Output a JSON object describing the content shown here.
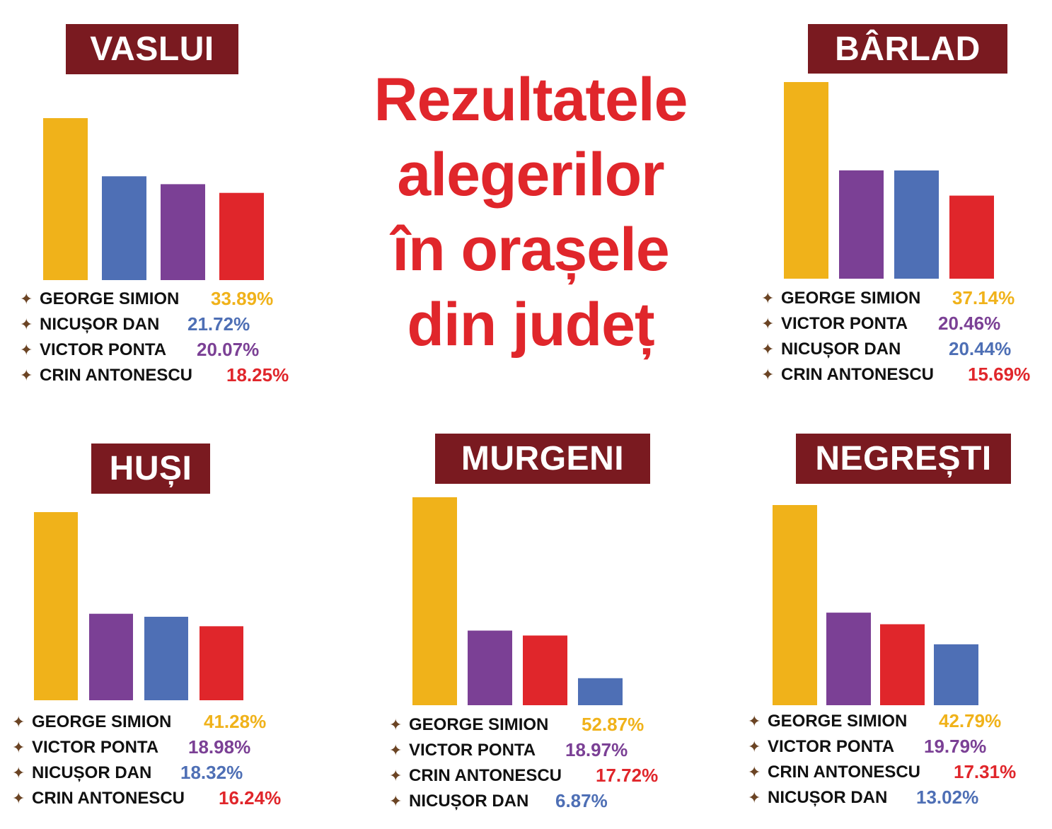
{
  "title_lines": [
    "Rezultatele",
    "alegerilor",
    "în orașele",
    "din județ"
  ],
  "colors": {
    "george_simion": "#f0b21a",
    "nicusor_dan": "#4e6fb5",
    "victor_ponta": "#7b4095",
    "crin_antonescu": "#e0262b",
    "title_box": "#7a1a20",
    "star": "#6b4424"
  },
  "bullet_icon": "star-bullet-icon",
  "chart_data": [
    {
      "type": "bar",
      "title": "VASLUI",
      "categories": [
        "GEORGE SIMION",
        "NICUȘOR DAN",
        "VICTOR PONTA",
        "CRIN ANTONESCU"
      ],
      "values": [
        33.89,
        21.72,
        20.07,
        18.25
      ],
      "labels": [
        "33.89%",
        "21.72%",
        "20.07%",
        "18.25%"
      ],
      "colors": [
        "#f0b21a",
        "#4e6fb5",
        "#7b4095",
        "#e0262b"
      ]
    },
    {
      "type": "bar",
      "title": "BÂRLAD",
      "categories": [
        "GEORGE SIMION",
        "VICTOR PONTA",
        "NICUȘOR DAN",
        "CRIN ANTONESCU"
      ],
      "values": [
        37.14,
        20.46,
        20.44,
        15.69
      ],
      "labels": [
        "37.14%",
        "20.46%",
        "20.44%",
        "15.69%"
      ],
      "colors": [
        "#f0b21a",
        "#7b4095",
        "#4e6fb5",
        "#e0262b"
      ]
    },
    {
      "type": "bar",
      "title": "HUȘI",
      "categories": [
        "GEORGE SIMION",
        "VICTOR PONTA",
        "NICUȘOR DAN",
        "CRIN ANTONESCU"
      ],
      "values": [
        41.28,
        18.98,
        18.32,
        16.24
      ],
      "labels": [
        "41.28%",
        "18.98%",
        "18.32%",
        "16.24%"
      ],
      "colors": [
        "#f0b21a",
        "#7b4095",
        "#4e6fb5",
        "#e0262b"
      ]
    },
    {
      "type": "bar",
      "title": "MURGENI",
      "categories": [
        "GEORGE SIMION",
        "VICTOR PONTA",
        "CRIN ANTONESCU",
        "NICUȘOR DAN"
      ],
      "values": [
        52.87,
        18.97,
        17.72,
        6.87
      ],
      "labels": [
        "52.87%",
        "18.97%",
        "17.72%",
        "6.87%"
      ],
      "colors": [
        "#f0b21a",
        "#7b4095",
        "#e0262b",
        "#4e6fb5"
      ]
    },
    {
      "type": "bar",
      "title": "NEGREȘTI",
      "categories": [
        "GEORGE SIMION",
        "VICTOR PONTA",
        "CRIN ANTONESCU",
        "NICUȘOR DAN"
      ],
      "values": [
        42.79,
        19.79,
        17.31,
        13.02
      ],
      "labels": [
        "42.79%",
        "19.79%",
        "17.31%",
        "13.02%"
      ],
      "colors": [
        "#f0b21a",
        "#7b4095",
        "#e0262b",
        "#4e6fb5"
      ]
    }
  ]
}
